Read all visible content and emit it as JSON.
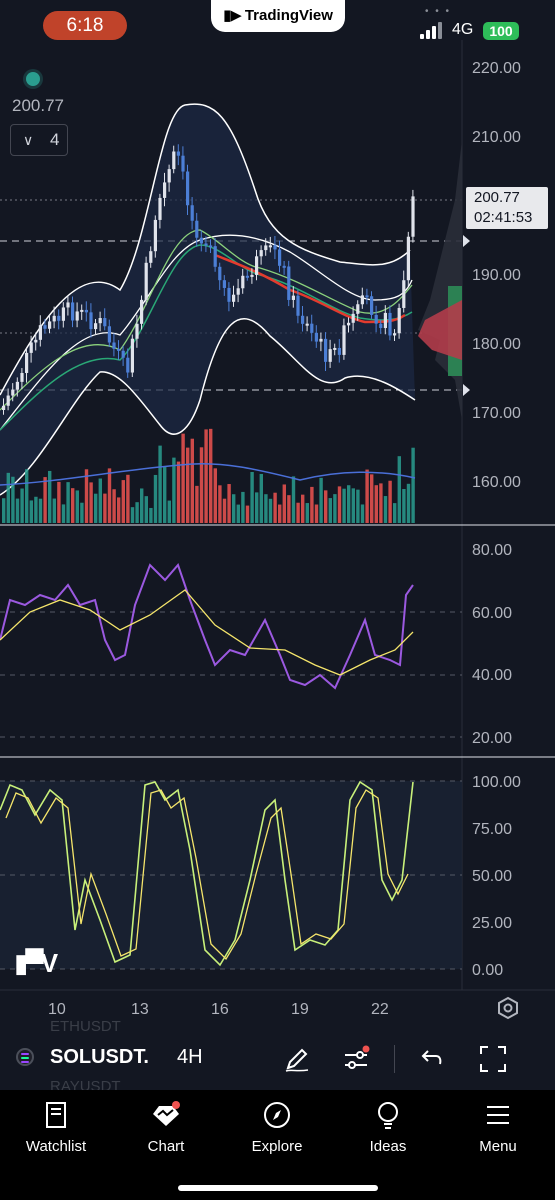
{
  "status_bar": {
    "time": "6:18",
    "network": "4G",
    "battery": "100"
  },
  "brand": {
    "name": "TradingView"
  },
  "chart": {
    "current_price": "200.77",
    "interval_count": "4",
    "price_badge": {
      "price": "200.77",
      "countdown": "02:41:53"
    },
    "main_axis_labels": [
      "220.00",
      "210.00",
      "190.00",
      "180.00",
      "170.00",
      "160.00"
    ],
    "rsi_axis_labels": [
      "80.00",
      "60.00",
      "40.00",
      "20.00"
    ],
    "stoch_axis_labels": [
      "100.00",
      "75.00",
      "50.00",
      "25.00",
      "0.00"
    ],
    "date_labels": [
      "10",
      "13",
      "16",
      "19",
      "22"
    ]
  },
  "toolbar": {
    "symbol": "SOLUSDT.",
    "timeframe": "4H",
    "ghost_symbol_above": "ETHUSDT",
    "ghost_symbol_below": "RAYUSDT"
  },
  "nav": {
    "items": [
      {
        "label": "Watchlist",
        "icon": "book-icon"
      },
      {
        "label": "Chart",
        "icon": "chart-icon"
      },
      {
        "label": "Explore",
        "icon": "compass-icon"
      },
      {
        "label": "Ideas",
        "icon": "lightbulb-icon"
      },
      {
        "label": "Menu",
        "icon": "hamburger-icon"
      }
    ]
  },
  "colors": {
    "background": "#131722",
    "bull": "#2a9d8f",
    "bear": "#ef5350",
    "candle_up": "#e0e3eb",
    "candle_down": "#4c7fd6",
    "rsi": "#9b59e0",
    "signal": "#f5e56b",
    "stoch": "#c8f07a",
    "accent": "#c0432a"
  }
}
